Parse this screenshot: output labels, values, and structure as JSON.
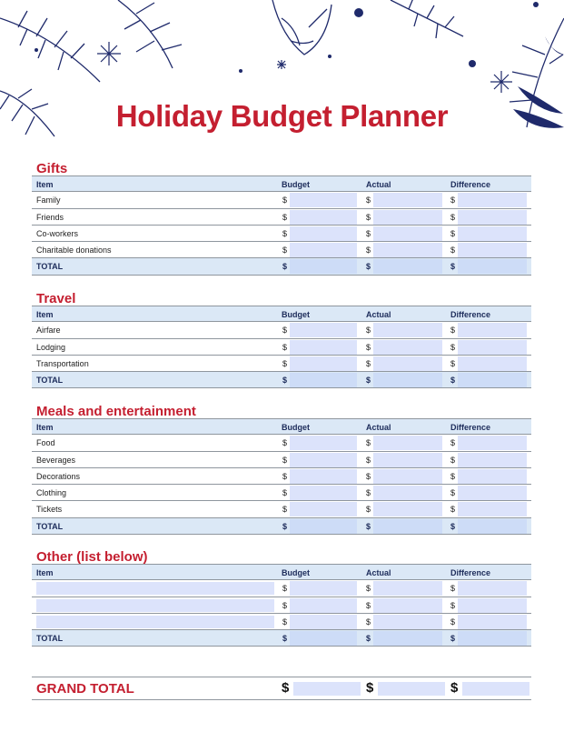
{
  "title": "Holiday Budget Planner",
  "colors": {
    "accent_red": "#c41f30",
    "navy": "#1c2b5a",
    "header_fill": "#dbe8f6",
    "input_fill": "#dce3fb"
  },
  "columns": {
    "item": "Item",
    "budget": "Budget",
    "actual": "Actual",
    "difference": "Difference"
  },
  "currency": "$",
  "total_label": "TOTAL",
  "sections": [
    {
      "title": "Gifts",
      "items": [
        "Family",
        "Friends",
        "Co-workers",
        "Charitable donations"
      ]
    },
    {
      "title": "Travel",
      "items": [
        "Airfare",
        "Lodging",
        "Transportation"
      ]
    },
    {
      "title": "Meals and entertainment",
      "items": [
        "Food",
        "Beverages",
        "Decorations",
        "Clothing",
        "Tickets"
      ]
    },
    {
      "title": "Other (list below)",
      "items": [
        "",
        "",
        ""
      ],
      "editable_items": true
    }
  ],
  "grand_total": {
    "label": "GRAND TOTAL"
  }
}
